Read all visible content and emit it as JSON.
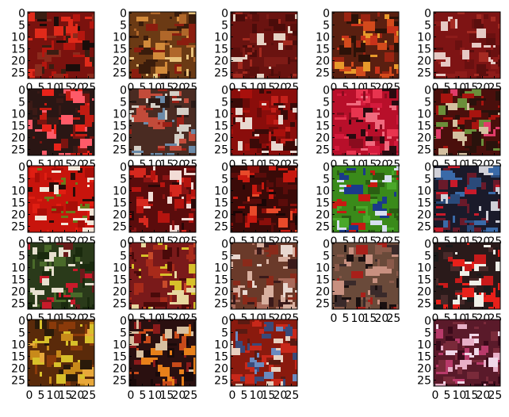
{
  "figure": {
    "grid": {
      "rows": 5,
      "cols": 5
    },
    "tick_labels": {
      "y": [
        "0",
        "5",
        "10",
        "15",
        "20",
        "25"
      ],
      "x": [
        "0",
        "5",
        "10",
        "15",
        "20",
        "25"
      ]
    },
    "panels": [
      {
        "row": 0,
        "col": 0,
        "base": "#7a120e",
        "palette": [
          "#b5160f",
          "#e02a1a",
          "#1a0d0a",
          "#3b1d12",
          "#8c2a1c"
        ],
        "seed": 1
      },
      {
        "row": 0,
        "col": 1,
        "base": "#6b3a14",
        "palette": [
          "#b0672a",
          "#d28a3a",
          "#3a1c0b",
          "#8b1d0f",
          "#e8c27a"
        ],
        "seed": 2
      },
      {
        "row": 0,
        "col": 2,
        "base": "#6a1310",
        "palette": [
          "#7e1b16",
          "#5a0f0c",
          "#a3291e",
          "#e6d2c4",
          "#4b0c0a"
        ],
        "seed": 3
      },
      {
        "row": 0,
        "col": 3,
        "base": "#5a1f10",
        "palette": [
          "#9b2412",
          "#d34a1c",
          "#e89a2b",
          "#2c1208",
          "#c8321a"
        ],
        "seed": 4
      },
      {
        "row": 0,
        "col": 4,
        "base": "#7e1414",
        "palette": [
          "#8e1c1a",
          "#6a1010",
          "#a52a22",
          "#e6c9c4",
          "#5b0e0e"
        ],
        "seed": 5
      },
      {
        "row": 1,
        "col": 0,
        "base": "#2a1614",
        "palette": [
          "#c21b12",
          "#e8231a",
          "#3b1a16",
          "#ff5a68",
          "#7a1410"
        ],
        "seed": 6
      },
      {
        "row": 1,
        "col": 1,
        "base": "#4a2b22",
        "palette": [
          "#9b2016",
          "#d4cfc6",
          "#6b8aa8",
          "#2b1a16",
          "#c24b3a"
        ],
        "seed": 7
      },
      {
        "row": 1,
        "col": 2,
        "base": "#8a0d0b",
        "palette": [
          "#a8100c",
          "#c3201a",
          "#6a0a08",
          "#e9d8d0",
          "#3a0a08"
        ],
        "seed": 8
      },
      {
        "row": 1,
        "col": 3,
        "base": "#b80f2a",
        "palette": [
          "#d41a3c",
          "#e8344f",
          "#8a0c1e",
          "#2a0a10",
          "#f06a7e"
        ],
        "seed": 9
      },
      {
        "row": 1,
        "col": 4,
        "base": "#4a0f0c",
        "palette": [
          "#a8140f",
          "#2a120c",
          "#e23b6a",
          "#6b8f3a",
          "#d4c0a0"
        ],
        "seed": 10
      },
      {
        "row": 2,
        "col": 0,
        "base": "#c8140c",
        "palette": [
          "#e01e12",
          "#a80e08",
          "#2a0c08",
          "#f4e6d8",
          "#6a7a1a"
        ],
        "seed": 11
      },
      {
        "row": 2,
        "col": 1,
        "base": "#5a0c0c",
        "palette": [
          "#b5140f",
          "#d6281e",
          "#2a0808",
          "#f2dcd6",
          "#8a1414"
        ],
        "seed": 12
      },
      {
        "row": 2,
        "col": 2,
        "base": "#3a0a08",
        "palette": [
          "#c8180f",
          "#8a0e0a",
          "#1a0606",
          "#e84a2a",
          "#5a0c0a"
        ],
        "seed": 13
      },
      {
        "row": 2,
        "col": 3,
        "base": "#3a8a1a",
        "palette": [
          "#4aa82a",
          "#2a5e12",
          "#d8e0f0",
          "#1a3a8a",
          "#c81a12"
        ],
        "seed": 14
      },
      {
        "row": 2,
        "col": 4,
        "base": "#1a1a2a",
        "palette": [
          "#c81a2a",
          "#2a4a7a",
          "#d0d0d8",
          "#6a1a2a",
          "#3a6aa8"
        ],
        "seed": 15
      },
      {
        "row": 3,
        "col": 0,
        "base": "#2a3a1a",
        "palette": [
          "#4a6a2a",
          "#c81a2a",
          "#e8e0d0",
          "#6a1a1a",
          "#1a2a0e"
        ],
        "seed": 16
      },
      {
        "row": 3,
        "col": 1,
        "base": "#7a1a1a",
        "palette": [
          "#a82a1a",
          "#d8c02a",
          "#4a0a0a",
          "#c84a2a",
          "#e8d8a0"
        ],
        "seed": 17
      },
      {
        "row": 3,
        "col": 2,
        "base": "#6a3a2a",
        "palette": [
          "#a86a5a",
          "#3a1a1a",
          "#d8b0a0",
          "#8a2a1a",
          "#e8d8d0"
        ],
        "seed": 18
      },
      {
        "row": 3,
        "col": 3,
        "base": "#6a4a3a",
        "palette": [
          "#8a5a4a",
          "#3a2a2a",
          "#c89080",
          "#a8201a",
          "#1a1010"
        ],
        "seed": 19
      },
      {
        "row": 3,
        "col": 4,
        "base": "#2a1a1a",
        "palette": [
          "#e8201a",
          "#c81a1a",
          "#f0f0e8",
          "#4a2a2a",
          "#1a1a1a"
        ],
        "seed": 20
      },
      {
        "row": 4,
        "col": 0,
        "base": "#5a2a0a",
        "palette": [
          "#c88a1a",
          "#d8c02a",
          "#8a3a0a",
          "#2a1a0a",
          "#e8a83a"
        ],
        "seed": 21
      },
      {
        "row": 4,
        "col": 1,
        "base": "#2a1010",
        "palette": [
          "#c84a1a",
          "#e8801a",
          "#8a1a1a",
          "#1a0a0a",
          "#d8c0a0"
        ],
        "seed": 22
      },
      {
        "row": 4,
        "col": 2,
        "base": "#8a1a0e",
        "palette": [
          "#c8281a",
          "#3a4a7a",
          "#6a8ac0",
          "#e8d0c0",
          "#5a1a12"
        ],
        "seed": 23
      },
      {
        "row": 4,
        "col": 3,
        "empty": true
      },
      {
        "row": 4,
        "col": 4,
        "base": "#5a1a2a",
        "palette": [
          "#7a2a3a",
          "#b83a6a",
          "#e8b0c8",
          "#3a0a1a",
          "#f0d8e8"
        ],
        "seed": 24
      }
    ]
  }
}
